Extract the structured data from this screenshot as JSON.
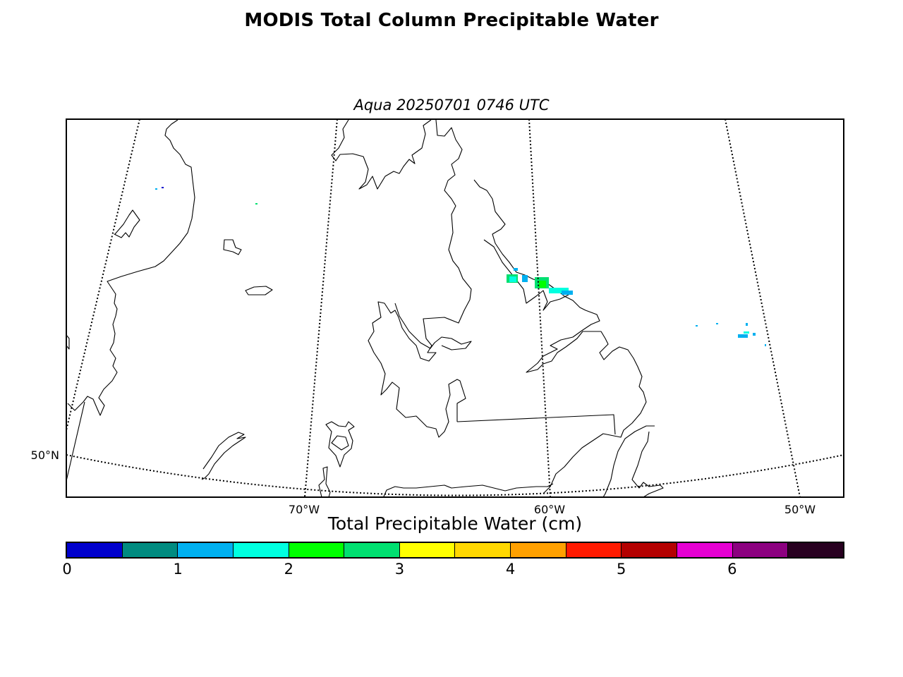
{
  "title": "MODIS Total Column Precipitable Water",
  "subtitle": "Aqua 20250701 0746 UTC",
  "map": {
    "longitude_labels": [
      "70°W",
      "60°W",
      "50°W"
    ],
    "latitude_labels": [
      "50°N"
    ],
    "graticule_style": "dotted",
    "coastline_color": "#000000"
  },
  "colorbar": {
    "label": "Total Precipitable Water (cm)",
    "min": 0,
    "max": 7,
    "step": 0.5,
    "colors": [
      "#0000cc",
      "#008b80",
      "#00b0f0",
      "#00ffe0",
      "#00ff00",
      "#00e070",
      "#ffff00",
      "#ffd700",
      "#ffa000",
      "#ff1a00",
      "#b40000",
      "#e600d2",
      "#8c0080",
      "#280020"
    ],
    "tick_labels": [
      "0",
      "1",
      "2",
      "3",
      "4",
      "5",
      "6"
    ]
  }
}
